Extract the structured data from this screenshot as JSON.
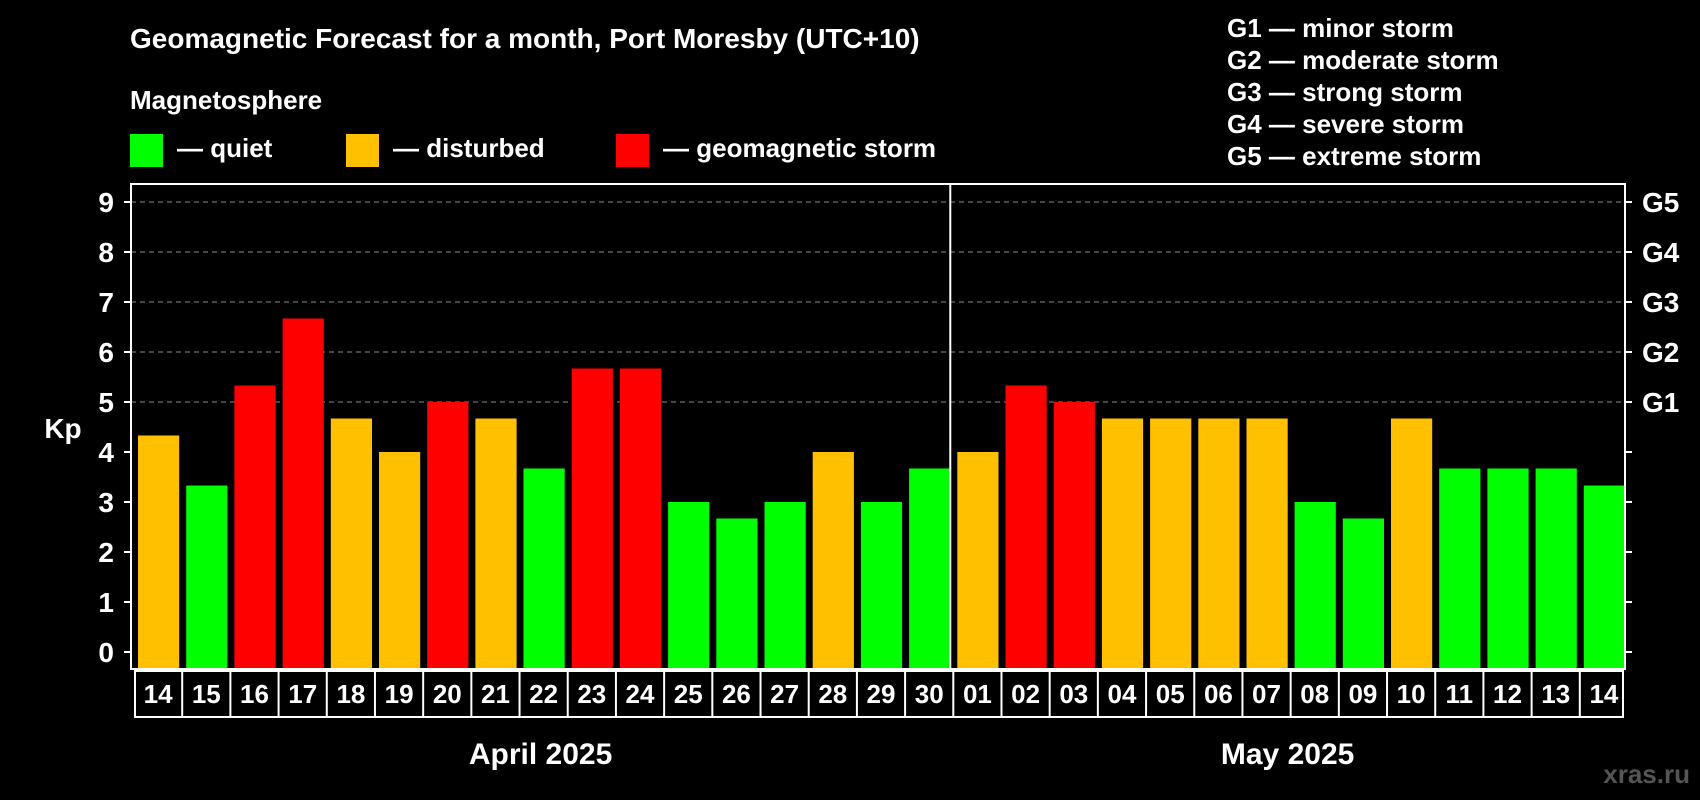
{
  "chart_data": {
    "type": "bar",
    "title": "Geomagnetic Forecast for a month, Port Moresby (UTC+10)",
    "ylabel": "Kp",
    "ylim": [
      0,
      9
    ],
    "yticks": [
      "0",
      "1",
      "2",
      "3",
      "4",
      "5",
      "6",
      "7",
      "8",
      "9"
    ],
    "grid_levels": [
      5,
      6,
      7,
      8,
      9
    ],
    "right_axis_labels": [
      {
        "kp": 5,
        "label": "G1"
      },
      {
        "kp": 6,
        "label": "G2"
      },
      {
        "kp": 7,
        "label": "G3"
      },
      {
        "kp": 8,
        "label": "G4"
      },
      {
        "kp": 9,
        "label": "G5"
      }
    ],
    "legend_title": "Magnetosphere",
    "legend": [
      {
        "label": "— quiet",
        "color": "#00ff00"
      },
      {
        "label": "— disturbed",
        "color": "#ffc000"
      },
      {
        "label": "— geomagnetic storm",
        "color": "#ff0000"
      }
    ],
    "storm_scale": [
      "G1 — minor storm",
      "G2 — moderate storm",
      "G3 — strong storm",
      "G4 — severe storm",
      "G5 — extreme storm"
    ],
    "months": [
      {
        "label": "April 2025",
        "start": 0,
        "end": 16
      },
      {
        "label": "May 2025",
        "start": 17,
        "end": 30
      }
    ],
    "categories": [
      "14",
      "15",
      "16",
      "17",
      "18",
      "19",
      "20",
      "21",
      "22",
      "23",
      "24",
      "25",
      "26",
      "27",
      "28",
      "29",
      "30",
      "01",
      "02",
      "03",
      "04",
      "05",
      "06",
      "07",
      "08",
      "09",
      "10",
      "11",
      "12",
      "13",
      "14"
    ],
    "values": [
      4.33,
      3.33,
      5.33,
      6.67,
      4.67,
      4.0,
      5.0,
      4.67,
      3.67,
      5.67,
      5.67,
      3.0,
      2.67,
      3.0,
      4.0,
      3.0,
      3.67,
      4.0,
      5.33,
      5.0,
      4.67,
      4.67,
      4.67,
      4.67,
      3.0,
      2.67,
      4.67,
      3.67,
      3.67,
      3.67,
      3.33
    ],
    "levels": [
      "disturbed",
      "quiet",
      "storm",
      "storm",
      "disturbed",
      "disturbed",
      "storm",
      "disturbed",
      "quiet",
      "storm",
      "storm",
      "quiet",
      "quiet",
      "quiet",
      "disturbed",
      "quiet",
      "quiet",
      "disturbed",
      "storm",
      "storm",
      "disturbed",
      "disturbed",
      "disturbed",
      "disturbed",
      "quiet",
      "quiet",
      "disturbed",
      "quiet",
      "quiet",
      "quiet",
      "quiet"
    ],
    "colors": {
      "quiet": "#00ff00",
      "disturbed": "#ffc000",
      "storm": "#ff0000"
    }
  },
  "watermark": "xras.ru"
}
